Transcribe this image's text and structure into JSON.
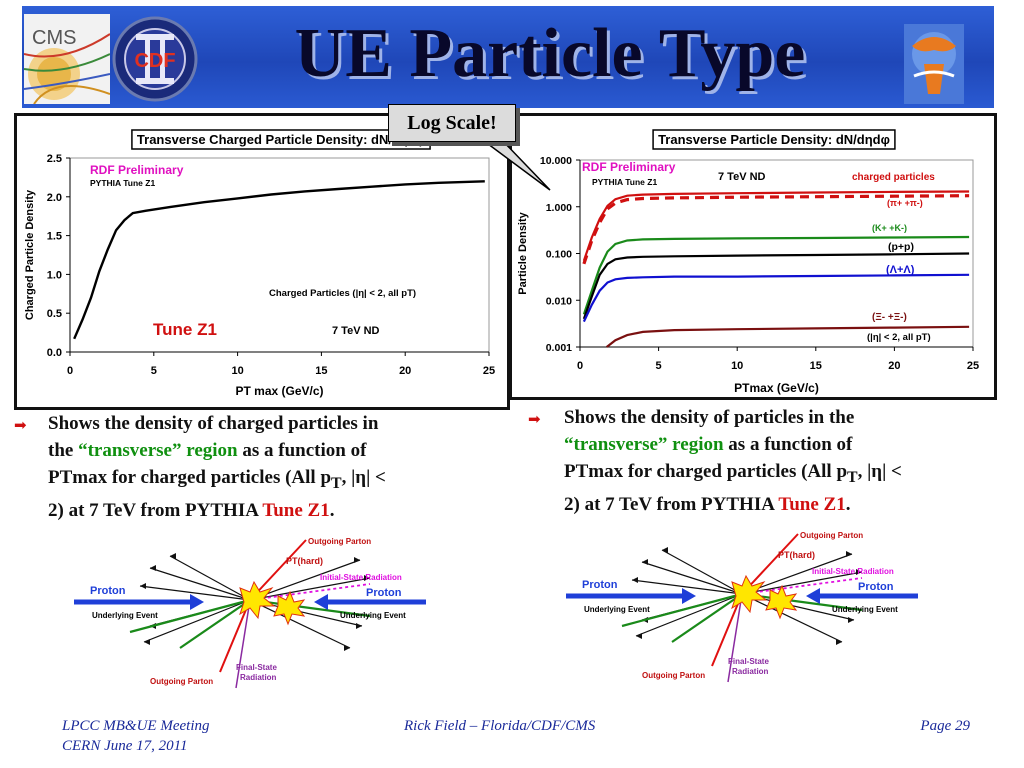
{
  "slide": {
    "title": "UE Particle Type",
    "callout": "Log Scale!",
    "left_bullet": {
      "line1": "Shows the density of charged particles in",
      "line2_a": "the ",
      "line2_green": "“transverse” region",
      "line2_b": " as a function of",
      "line3_a": "PTmax for charged particles (All p",
      "line3_sub": "T",
      "line3_b": ", |η| <",
      "line4_a": "2) at 7 TeV from PYTHIA ",
      "line4_red": "Tune Z1",
      "line4_b": "."
    },
    "right_bullet": {
      "line1": "Shows the density of particles in the",
      "line2_green": "“transverse” region",
      "line2_b": " as a function of",
      "line3_a": "PTmax for charged particles (All p",
      "line3_sub": "T",
      "line3_b": ", |η| <",
      "line4_a": "2) at 7 TeV from PYTHIA ",
      "line4_red": "Tune Z1",
      "line4_b": "."
    },
    "diagram": {
      "outgoing_parton_top": "Outgoing Parton",
      "pt_hard": "PT(hard)",
      "initial_state": "Initial-State Radiation",
      "proton_left": "Proton",
      "proton_right": "Proton",
      "underlying_left": "Underlying Event",
      "underlying_right": "Underlying Event",
      "outgoing_parton_bottom": "Outgoing Parton",
      "final_state_1": "Final-State",
      "final_state_2": "Radiation"
    },
    "footer": {
      "left1": "LPCC MB&UE Meeting",
      "left2": "CERN June 17, 2011",
      "center": "Rick Field – Florida/CDF/CMS",
      "right": "Page 29"
    },
    "logos": {
      "cms": "CMS",
      "cdf": "CDF"
    }
  },
  "chart_data": [
    {
      "type": "line",
      "title": "Transverse Charged Particle Density: dN/dηdφ",
      "xlabel": "PT max (GeV/c)",
      "ylabel": "Charged Particle Density",
      "xlim": [
        0,
        25
      ],
      "ylim": [
        0,
        2.5
      ],
      "xticks": [
        "0",
        "5",
        "10",
        "15",
        "20",
        "25"
      ],
      "yticks": [
        "0.0",
        "0.5",
        "1.0",
        "1.5",
        "2.0",
        "2.5"
      ],
      "annotations": {
        "preliminary": "RDF Preliminary",
        "tune": "PYTHIA Tune Z1",
        "selection": "Charged Particles (|η| < 2, all pT)",
        "tune_big": "Tune Z1",
        "energy": "7 TeV ND"
      },
      "series": [
        {
          "color": "#000000",
          "x": [
            0.25,
            0.75,
            1.25,
            1.75,
            2.25,
            2.75,
            3.25,
            3.75,
            4.5,
            6,
            8,
            10,
            12,
            14,
            16,
            18,
            20,
            22,
            24.75
          ],
          "y": [
            0.17,
            0.42,
            0.7,
            1.04,
            1.32,
            1.57,
            1.7,
            1.79,
            1.82,
            1.87,
            1.93,
            1.98,
            2.03,
            2.07,
            2.1,
            2.13,
            2.16,
            2.18,
            2.2
          ]
        }
      ]
    },
    {
      "type": "line",
      "title": "Transverse Particle Density: dN/dηdφ",
      "xlabel": "PTmax  (GeV/c)",
      "ylabel": "Particle Density",
      "xlim": [
        0,
        25
      ],
      "ylim": [
        0.001,
        10
      ],
      "yscale": "log",
      "xticks": [
        "0",
        "5",
        "10",
        "15",
        "20",
        "25"
      ],
      "yticks": [
        "0.001",
        "0.010",
        "0.100",
        "1.000",
        "10.000"
      ],
      "annotations": {
        "preliminary": "RDF Preliminary",
        "tune": "PYTHIA Tune Z1",
        "energy": "7 TeV ND",
        "selection": "(|η| < 2, all pT)"
      },
      "series": [
        {
          "name": "charged particles",
          "color": "#d01010",
          "x": [
            0.25,
            0.75,
            1.25,
            1.75,
            2.25,
            3,
            4,
            6,
            10,
            15,
            20,
            24.75
          ],
          "y": [
            0.07,
            0.22,
            0.55,
            1.05,
            1.45,
            1.72,
            1.82,
            1.88,
            1.95,
            2.02,
            2.08,
            2.12
          ]
        },
        {
          "name": "(π+ +π-)",
          "color": "#d01010",
          "dashed": true,
          "x": [
            0.25,
            0.75,
            1.25,
            1.75,
            2.25,
            3,
            4,
            6,
            10,
            15,
            20,
            24.75
          ],
          "y": [
            0.06,
            0.19,
            0.46,
            0.9,
            1.2,
            1.42,
            1.5,
            1.55,
            1.6,
            1.64,
            1.68,
            1.72
          ]
        },
        {
          "name": "(K+ +K-)",
          "color": "#1a8a1a",
          "x": [
            0.25,
            0.75,
            1.25,
            1.75,
            2.25,
            3,
            4,
            6,
            10,
            15,
            20,
            24.75
          ],
          "y": [
            0.005,
            0.016,
            0.05,
            0.11,
            0.16,
            0.19,
            0.2,
            0.205,
            0.21,
            0.215,
            0.22,
            0.225
          ]
        },
        {
          "name": "(p+p)",
          "color": "#000000",
          "x": [
            0.25,
            0.75,
            1.25,
            1.75,
            2.25,
            3,
            4,
            6,
            10,
            15,
            20,
            24.75
          ],
          "y": [
            0.004,
            0.012,
            0.035,
            0.06,
            0.075,
            0.082,
            0.085,
            0.087,
            0.09,
            0.093,
            0.096,
            0.1
          ]
        },
        {
          "name": "(Λ+Λ)",
          "color": "#1010d0",
          "x": [
            0.25,
            0.75,
            1.25,
            1.75,
            2.25,
            3,
            4,
            6,
            10,
            15,
            20,
            24.75
          ],
          "y": [
            0.0035,
            0.008,
            0.016,
            0.024,
            0.028,
            0.03,
            0.031,
            0.032,
            0.032,
            0.033,
            0.034,
            0.035
          ]
        },
        {
          "name": "(Ξ- +Ξ-)",
          "color": "#7a1010",
          "x": [
            1.7,
            2.25,
            3,
            4,
            6,
            10,
            15,
            20,
            24.75
          ],
          "y": [
            0.001,
            0.0014,
            0.0018,
            0.0021,
            0.0023,
            0.0024,
            0.0025,
            0.0026,
            0.0027
          ]
        }
      ]
    }
  ]
}
